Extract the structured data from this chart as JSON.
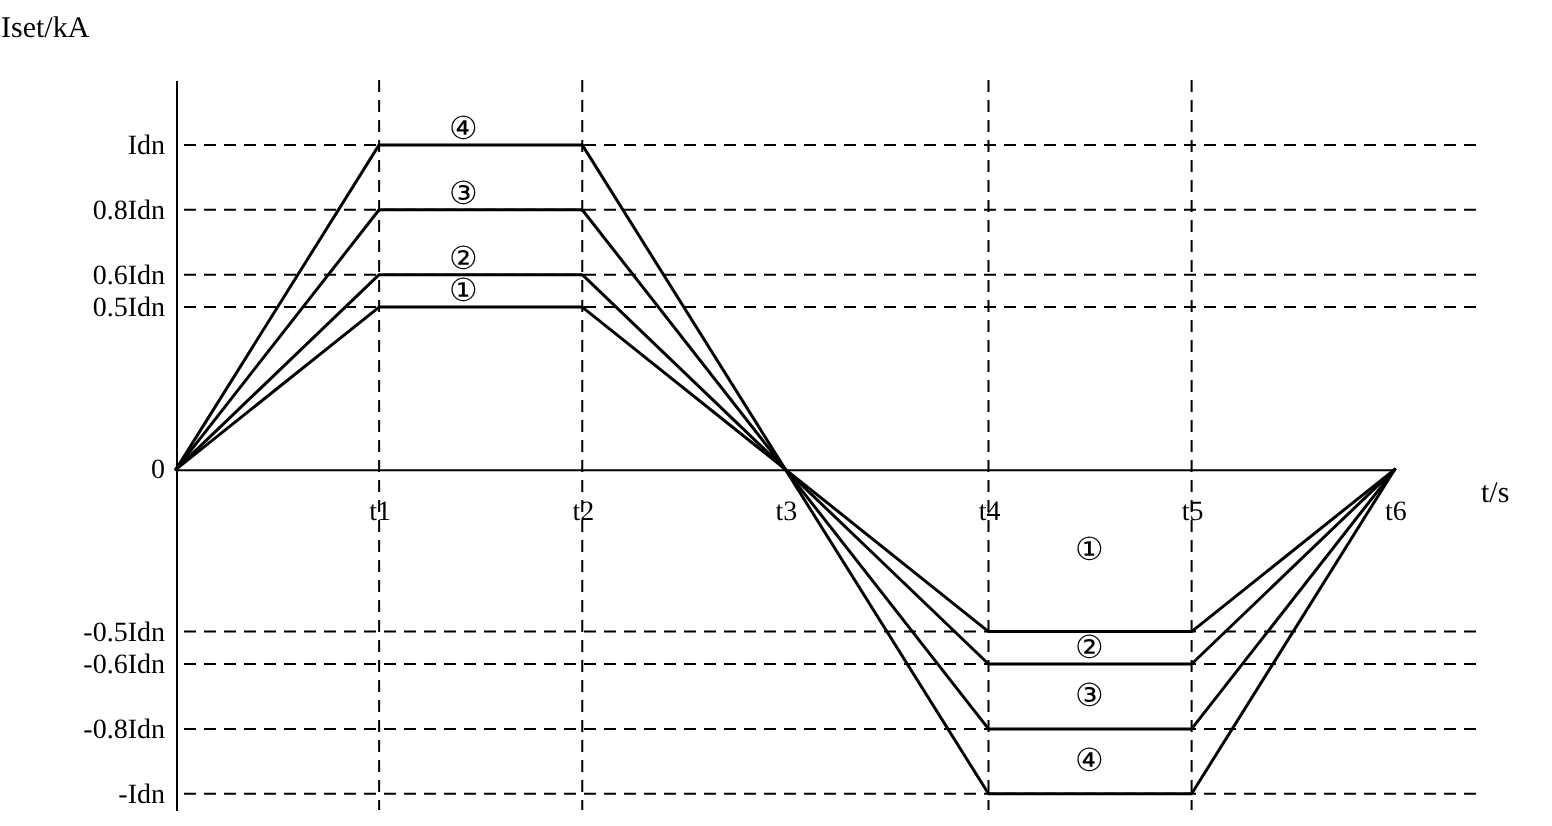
{
  "chart_data": {
    "type": "line",
    "xlabel": "t/s",
    "ylabel": "Iset/kA",
    "categories": [
      null,
      "t1",
      "t2",
      "t3",
      "t4",
      "t5",
      "t6"
    ],
    "series": [
      {
        "name": "①",
        "color": "#000000",
        "values": [
          0,
          0.5,
          0.5,
          0,
          -0.5,
          -0.5,
          0
        ]
      },
      {
        "name": "②",
        "color": "#000000",
        "values": [
          0,
          0.6,
          0.6,
          0,
          -0.6,
          -0.6,
          0
        ]
      },
      {
        "name": "③",
        "color": "#000000",
        "values": [
          0,
          0.8,
          0.8,
          0,
          -0.8,
          -0.8,
          0
        ]
      },
      {
        "name": "④",
        "color": "#000000",
        "values": [
          0,
          1,
          1,
          0,
          -1,
          -1,
          0
        ]
      }
    ],
    "ylim": [
      -1.05,
      1.2
    ],
    "yticks": [
      {
        "value": 1,
        "label": "Idn"
      },
      {
        "value": 0.8,
        "label": "0.8Idn"
      },
      {
        "value": 0.6,
        "label": "0.6Idn"
      },
      {
        "value": 0.5,
        "label": "0.5Idn"
      },
      {
        "value": 0,
        "label": "0"
      },
      {
        "value": -0.5,
        "label": "-0.5Idn"
      },
      {
        "value": -0.6,
        "label": "-0.6Idn"
      },
      {
        "value": -0.8,
        "label": "-0.8Idn"
      },
      {
        "value": -1,
        "label": "-Idn"
      }
    ],
    "ref_lines": [
      {
        "axis": "x",
        "value": "t1",
        "line_style": "dashed"
      },
      {
        "axis": "x",
        "value": "t2",
        "line_style": "dashed"
      },
      {
        "axis": "x",
        "value": "t4",
        "line_style": "dashed"
      },
      {
        "axis": "x",
        "value": "t5",
        "line_style": "dashed"
      },
      {
        "axis": "y",
        "value": 1,
        "line_style": "dashed"
      },
      {
        "axis": "y",
        "value": 0.8,
        "line_style": "dashed"
      },
      {
        "axis": "y",
        "value": 0.6,
        "line_style": "dashed"
      },
      {
        "axis": "y",
        "value": 0.5,
        "line_style": "dashed"
      },
      {
        "axis": "y",
        "value": -0.5,
        "line_style": "dashed"
      },
      {
        "axis": "y",
        "value": -0.6,
        "line_style": "dashed"
      },
      {
        "axis": "y",
        "value": -0.8,
        "line_style": "dashed"
      },
      {
        "axis": "y",
        "value": -1,
        "line_style": "dashed"
      }
    ],
    "marker": "none",
    "line_style": "solid"
  }
}
